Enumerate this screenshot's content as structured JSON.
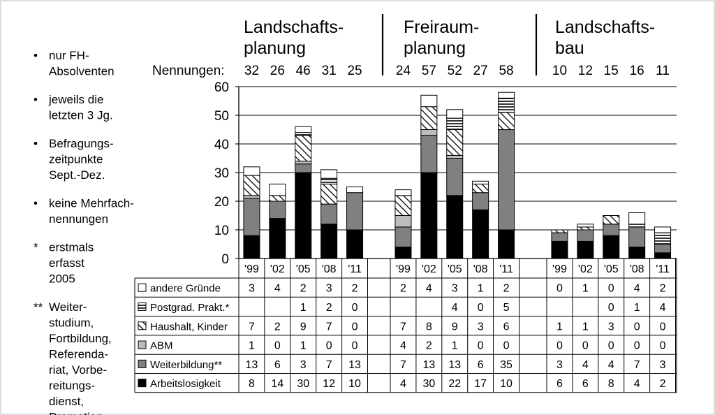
{
  "notes": [
    {
      "marker": "•",
      "lines": [
        "nur FH-",
        "Absolventen"
      ]
    },
    {
      "marker": "•",
      "lines": [
        "jeweils die",
        "letzten 3 Jg."
      ]
    },
    {
      "marker": "•",
      "lines": [
        "Befragungs-",
        "zeitpunkte",
        "Sept.-Dez."
      ]
    },
    {
      "marker": "•",
      "lines": [
        "keine Mehrfach-",
        "nennungen"
      ]
    },
    {
      "marker": "*",
      "lines": [
        "erstmals",
        "erfasst",
        "2005"
      ]
    },
    {
      "marker": "**",
      "lines": [
        "Weiter-",
        "studium,",
        "Fortbildung,",
        "Referenda-",
        "riat, Vorbe-",
        "reitungs-",
        "dienst,",
        "Promotion"
      ]
    }
  ],
  "nennungen_label": "Nennungen:",
  "chart_data": {
    "type": "bar",
    "stacked": true,
    "ylim": [
      0,
      60
    ],
    "yticks": [
      0,
      10,
      20,
      30,
      40,
      50,
      60
    ],
    "grid": true,
    "years": [
      "'99",
      "'02",
      "'05",
      "'08",
      "'11"
    ],
    "groups": [
      {
        "name_lines": [
          "Landschafts-",
          "planung"
        ],
        "nennungen": [
          "32",
          "26",
          "46",
          "31",
          "25"
        ]
      },
      {
        "name_lines": [
          "Freiraum-",
          "planung"
        ],
        "nennungen": [
          "24",
          "57",
          "52",
          "27",
          "58"
        ]
      },
      {
        "name_lines": [
          "Landschafts-",
          "bau"
        ],
        "nennungen": [
          "10",
          "12",
          "15",
          "16",
          "11"
        ]
      }
    ],
    "series": [
      {
        "name": "Arbeitslosigkeit",
        "pattern": "black",
        "values": [
          8,
          14,
          30,
          12,
          10,
          4,
          30,
          22,
          17,
          10,
          6,
          6,
          8,
          4,
          2
        ],
        "labels": [
          "8",
          "14",
          "30",
          "12",
          "10",
          "4",
          "30",
          "22",
          "17",
          "10",
          "6",
          "6",
          "8",
          "4",
          "2"
        ]
      },
      {
        "name": "Weiterbildung**",
        "pattern": "darkgray",
        "values": [
          13,
          6,
          3,
          7,
          13,
          7,
          13,
          13,
          6,
          35,
          3,
          4,
          4,
          7,
          3
        ],
        "labels": [
          "13",
          "6",
          "3",
          "7",
          "13",
          "7",
          "13",
          "13",
          "6",
          "35",
          "3",
          "4",
          "4",
          "7",
          "3"
        ]
      },
      {
        "name": "ABM",
        "pattern": "lightgray",
        "values": [
          1,
          0,
          1,
          0,
          0,
          4,
          2,
          1,
          0,
          0,
          0,
          0,
          0,
          0,
          0
        ],
        "labels": [
          "1",
          "0",
          "1",
          "0",
          "0",
          "4",
          "2",
          "1",
          "0",
          "0",
          "0",
          "0",
          "0",
          "0",
          "0"
        ]
      },
      {
        "name": "Haushalt, Kinder",
        "pattern": "diagonal",
        "values": [
          7,
          2,
          9,
          7,
          0,
          7,
          8,
          9,
          3,
          6,
          1,
          1,
          3,
          0,
          0
        ],
        "labels": [
          "7",
          "2",
          "9",
          "7",
          "0",
          "7",
          "8",
          "9",
          "3",
          "6",
          "1",
          "1",
          "3",
          "0",
          "0"
        ]
      },
      {
        "name": "Postgrad. Prakt.*",
        "pattern": "horizontal",
        "values": [
          0,
          0,
          1,
          2,
          0,
          0,
          0,
          4,
          0,
          5,
          0,
          0,
          0,
          1,
          4
        ],
        "labels": [
          "",
          "",
          "1",
          "2",
          "0",
          "",
          "",
          "4",
          "0",
          "5",
          "",
          "",
          "0",
          "1",
          "4"
        ]
      },
      {
        "name": "andere Gründe",
        "pattern": "white",
        "values": [
          3,
          4,
          2,
          3,
          2,
          2,
          4,
          3,
          1,
          2,
          0,
          1,
          0,
          4,
          2
        ],
        "labels": [
          "3",
          "4",
          "2",
          "3",
          "2",
          "2",
          "4",
          "3",
          "1",
          "2",
          "0",
          "1",
          "0",
          "4",
          "2"
        ]
      }
    ]
  }
}
